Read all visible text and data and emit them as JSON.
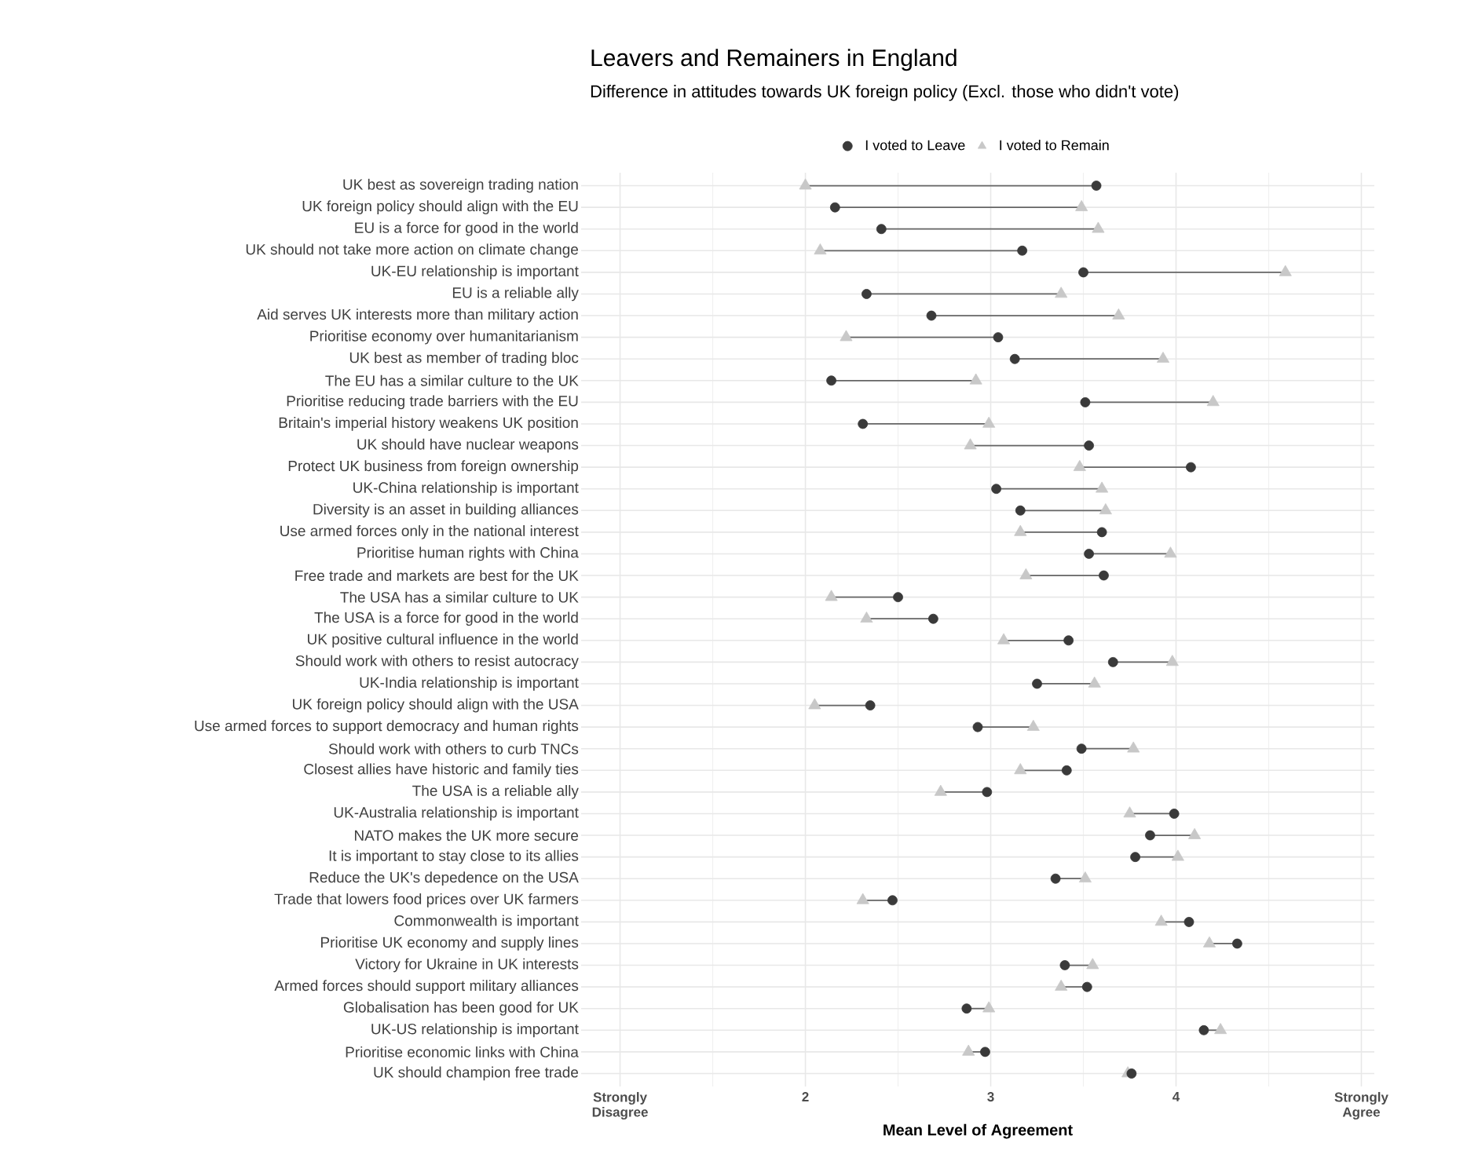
{
  "chart_data": {
    "type": "scatter",
    "orientation": "horizontal",
    "title": "Leavers and Remainers in England",
    "subtitle": "Difference in attitudes towards UK foreign policy (Excl. those who didn't vote)",
    "xlabel": "Mean Level of Agreement",
    "categories": [
      "UK best as sovereign trading nation",
      "UK foreign policy should align with the EU",
      "EU is a force for good in the world",
      "UK should not take more action on climate change",
      "UK-EU relationship is important",
      "EU is a reliable ally",
      "Aid serves UK interests more than military action",
      "Prioritise economy over humanitarianism",
      "UK best as member of trading bloc",
      "The EU has a similar culture to the UK",
      "Prioritise reducing trade barriers with the EU",
      "Britain's imperial history weakens UK position",
      "UK should have nuclear weapons",
      "Protect UK business from foreign ownership",
      "UK-China relationship is important",
      "Diversity is an asset in building alliances",
      "Use armed forces only in the national interest",
      "Prioritise human rights with China",
      "Free trade and markets are best for the UK",
      "The USA has a similar culture to UK",
      "The USA is a force for good in the world",
      "UK positive cultural influence in the world",
      "Should work with others to resist autocracy",
      "UK-India relationship is important",
      "UK foreign policy should align with the USA",
      "Use armed forces to support democracy and human rights",
      "Should work with others to curb TNCs",
      "Closest allies have historic and family ties",
      "The USA is a reliable ally",
      "UK-Australia relationship is important",
      "NATO makes the UK more secure",
      "It is important to stay close to its allies",
      "Reduce the UK's depedence on the USA",
      "Trade that lowers food prices over UK farmers",
      "Commonwealth is important",
      "Prioritise UK economy and supply lines",
      "Victory for Ukraine in UK interests",
      "Armed forces should support military alliances",
      "Globalisation has been good for UK",
      "UK-US relationship is important",
      "Prioritise economic links with China",
      "UK should champion free trade"
    ],
    "series": [
      {
        "name": "I voted to Leave",
        "color": "#3a3a3a",
        "marker": "circle",
        "values": [
          3.57,
          2.16,
          2.41,
          3.17,
          3.5,
          2.33,
          2.68,
          3.04,
          3.13,
          2.14,
          3.51,
          2.31,
          3.53,
          4.08,
          3.03,
          3.16,
          3.6,
          3.53,
          3.61,
          2.5,
          2.69,
          3.42,
          3.66,
          3.25,
          2.35,
          2.93,
          3.49,
          3.41,
          2.98,
          3.99,
          3.86,
          3.78,
          3.35,
          2.47,
          4.07,
          4.33,
          3.4,
          3.52,
          2.87,
          4.15,
          2.97,
          3.76
        ]
      },
      {
        "name": "I voted to Remain",
        "color": "#c8c8c8",
        "marker": "triangle",
        "values": [
          2.0,
          3.49,
          3.58,
          2.08,
          4.59,
          3.38,
          3.69,
          2.22,
          3.93,
          2.92,
          4.2,
          2.99,
          2.89,
          3.48,
          3.6,
          3.62,
          3.16,
          3.97,
          3.19,
          2.14,
          2.33,
          3.07,
          3.98,
          3.56,
          2.05,
          3.23,
          3.77,
          3.16,
          2.73,
          3.75,
          4.1,
          4.01,
          3.51,
          2.31,
          3.92,
          4.18,
          3.55,
          3.38,
          2.99,
          4.24,
          2.88,
          3.74
        ]
      }
    ],
    "xlim": [
      0.79,
      5.07
    ],
    "xticks": [
      {
        "value": 1,
        "label": "Strongly Disagree"
      },
      2,
      3,
      4,
      {
        "value": 5,
        "label": "Strongly Agree"
      }
    ],
    "grid": true,
    "legend": "top"
  }
}
